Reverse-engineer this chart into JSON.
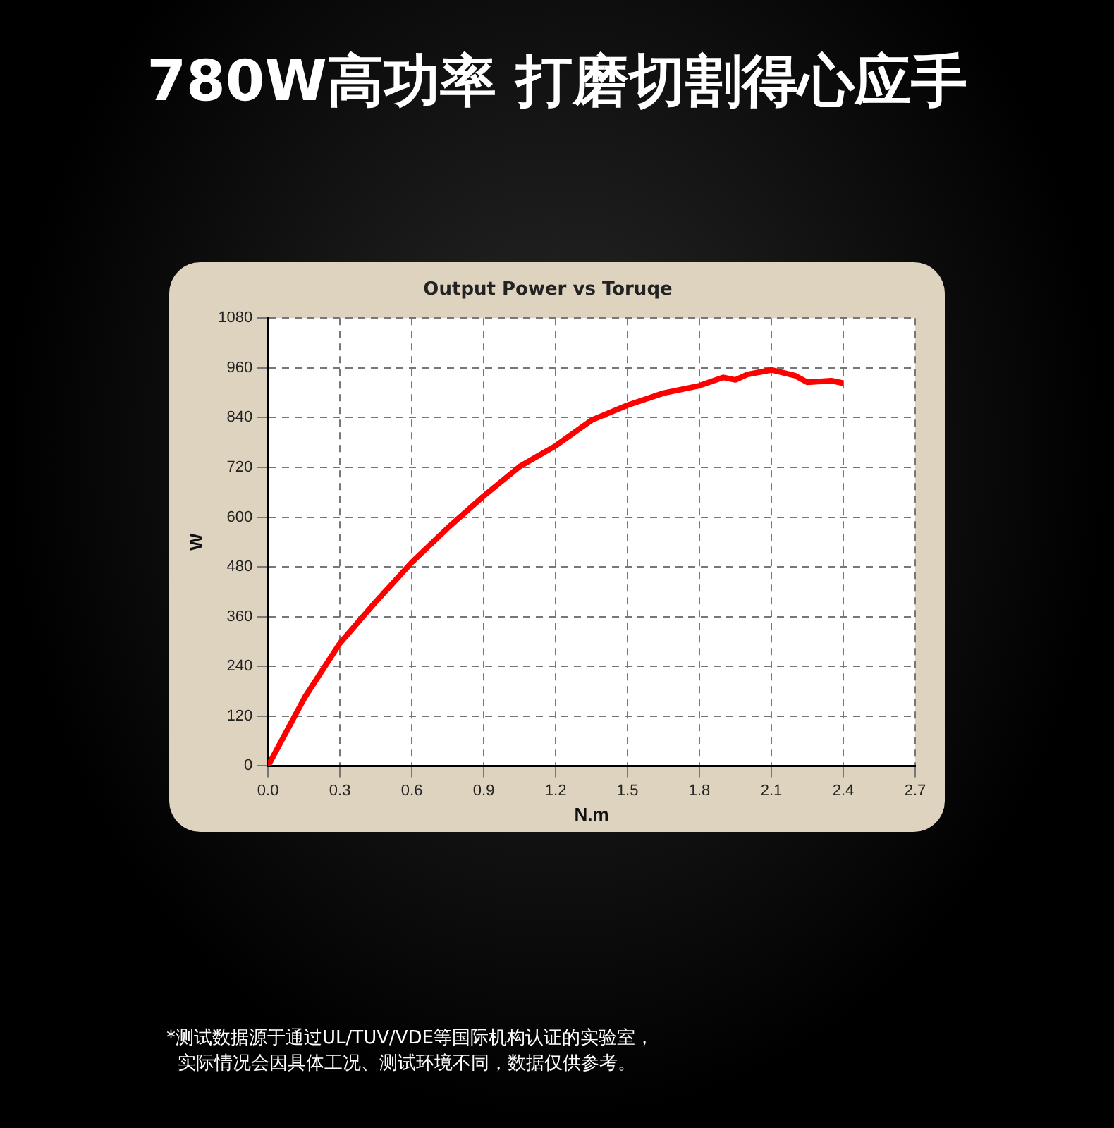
{
  "chart_data": {
    "type": "line",
    "title": "780W高功率 打磨切割得心应手",
    "subtitle": "Output Power vs Toruqe",
    "xlabel": "N.m",
    "ylabel": "W",
    "series": [
      {
        "color": "#ff0000",
        "x": [
          0,
          0.154,
          0.3,
          0.45,
          0.6,
          0.75,
          0.9,
          1.05,
          1.2,
          1.35,
          1.5,
          1.65,
          1.8,
          1.9,
          1.95,
          2.0,
          2.1,
          2.2,
          2.25,
          2.35,
          2.4
        ],
        "values": [
          0,
          166,
          296,
          396,
          491,
          574,
          651,
          722,
          772,
          834,
          870,
          899,
          917,
          937,
          931,
          944,
          955,
          941,
          925,
          929,
          923
        ]
      }
    ],
    "xlim": [
      0,
      2.7
    ],
    "xticks": [
      {
        "value": 0,
        "label": "0.0"
      },
      0.3,
      0.6,
      0.9,
      1.2,
      1.5,
      1.8,
      2.1,
      2.4,
      2.7
    ],
    "ylim": [
      0,
      1080
    ],
    "yticks": [
      0,
      120,
      240,
      360,
      480,
      600,
      720,
      840,
      960,
      1080
    ],
    "grid": true,
    "legend": false,
    "marker": "none",
    "line_style": "solid",
    "annotations": [
      "*测试数据源于通过UL/TUV/VDE等国际机构认证的实验室，",
      "实际情况会因具体工况、测试环境不同，数据仅供参考。"
    ]
  }
}
